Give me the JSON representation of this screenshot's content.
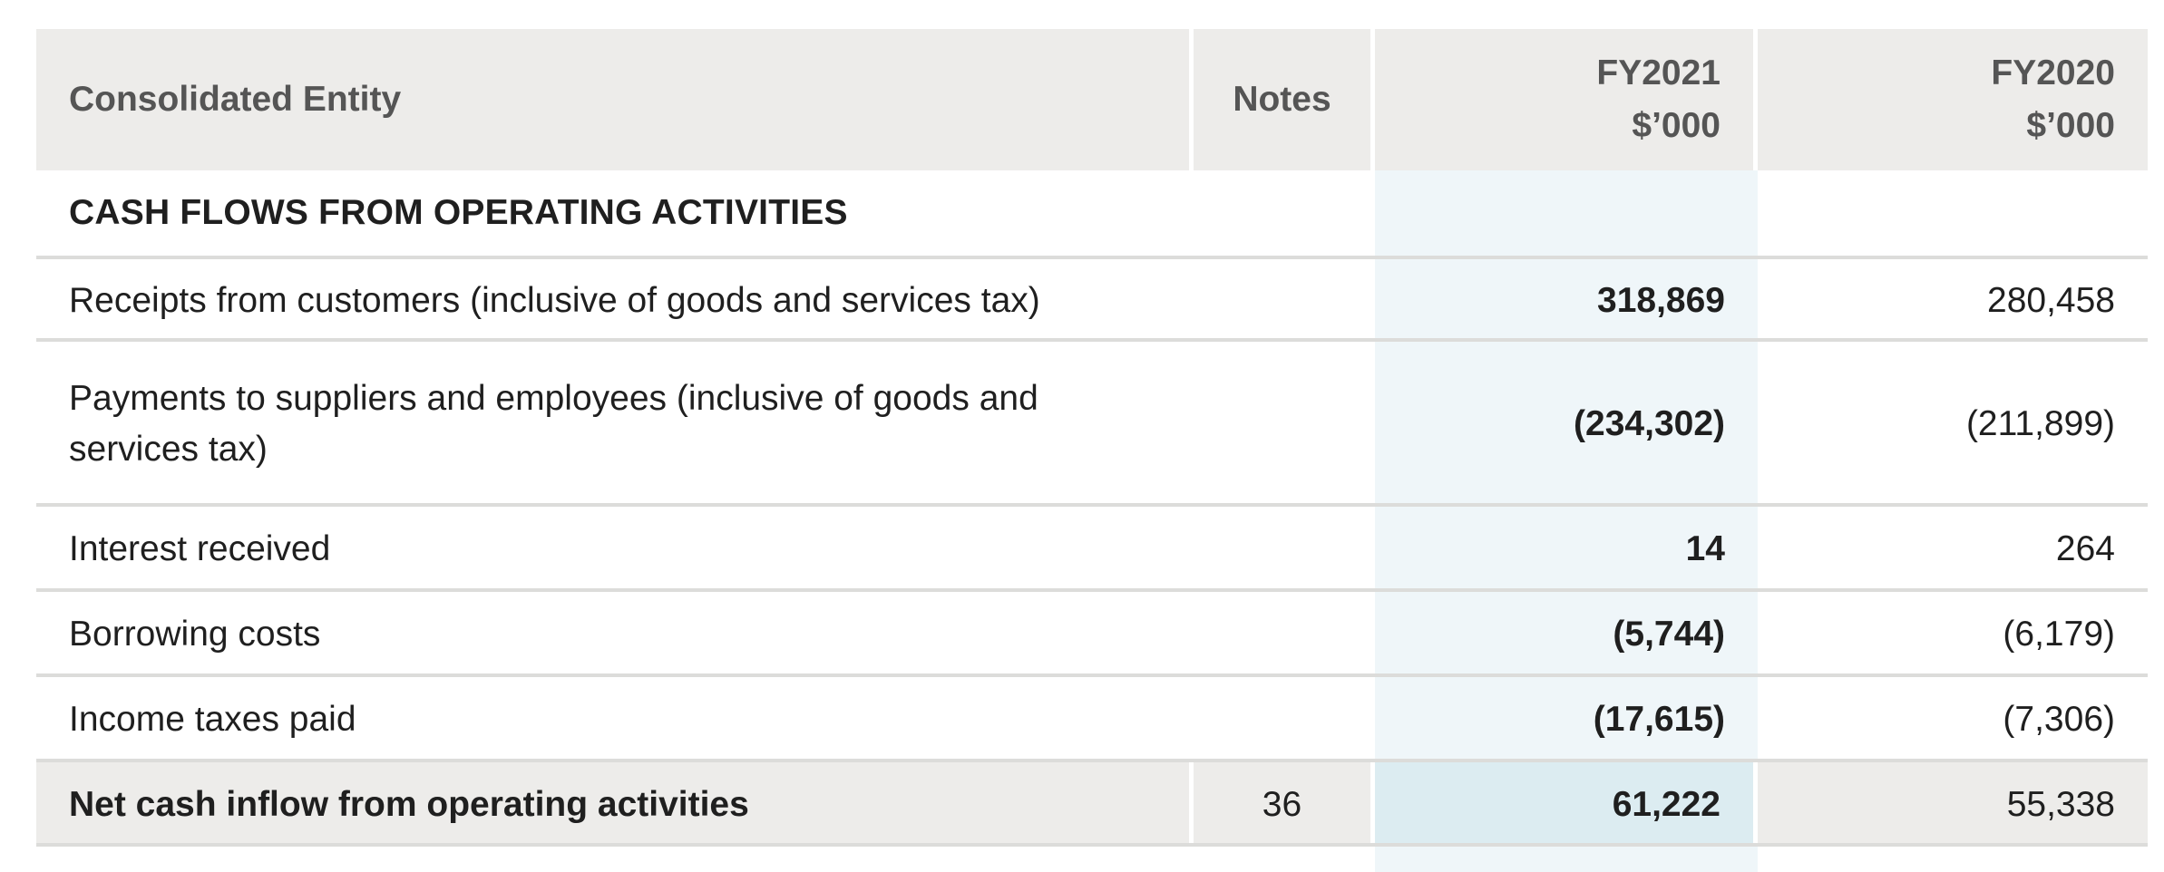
{
  "header": {
    "entity": "Consolidated Entity",
    "notes": "Notes",
    "fy2021_year": "FY2021",
    "fy2021_unit": "$’000",
    "fy2020_year": "FY2020",
    "fy2020_unit": "$’000"
  },
  "section_title": "CASH FLOWS FROM OPERATING ACTIVITIES",
  "rows": [
    {
      "label": "Receipts from customers (inclusive of goods and services tax)",
      "notes": "",
      "fy2021": "318,869",
      "fy2020": "280,458"
    },
    {
      "label": "Payments to suppliers and employees (inclusive of goods and services tax)",
      "notes": "",
      "fy2021": "(234,302)",
      "fy2020": "(211,899)"
    },
    {
      "label": "Interest received",
      "notes": "",
      "fy2021": "14",
      "fy2020": "264"
    },
    {
      "label": "Borrowing costs",
      "notes": "",
      "fy2021": "(5,744)",
      "fy2020": "(6,179)"
    },
    {
      "label": "Income taxes paid",
      "notes": "",
      "fy2021": "(17,615)",
      "fy2020": "(7,306)"
    }
  ],
  "total": {
    "label": "Net cash inflow from operating activities",
    "notes": "36",
    "fy2021": "61,222",
    "fy2020": "55,338"
  },
  "colors": {
    "header_bg": "#edecea",
    "fy2021_highlight": "#eff6f9",
    "fy2021_total_highlight": "#dcecf1"
  }
}
